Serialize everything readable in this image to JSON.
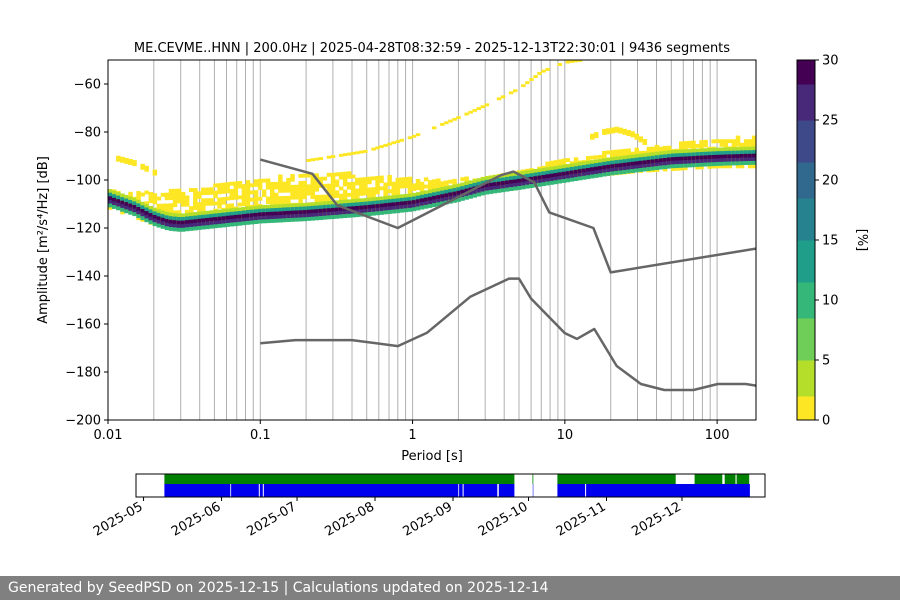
{
  "title": "ME.CEVME..HNN | 200.0Hz | 2025-04-28T08:32:59 - 2025-12-13T22:30:01 | 9436 segments",
  "footer": "Generated by SeedPSD on 2025-12-15 | Calculations updated on 2025-12-14",
  "colors": {
    "model": "#666666",
    "grid": "#b0b0b0",
    "coverage_data": "#0000ee",
    "coverage_status": "#008000",
    "viridis": [
      "#fde725",
      "#b5de2b",
      "#6ece58",
      "#35b779",
      "#1f9e89",
      "#26828e",
      "#31688e",
      "#3e4989",
      "#482878",
      "#440154"
    ]
  },
  "chart_data": [
    {
      "type": "heatmap",
      "name": "ppsd",
      "title": "ME.CEVME..HNN | 200.0Hz | 2025-04-28T08:32:59 - 2025-12-13T22:30:01 | 9436 segments",
      "xlabel": "Period [s]",
      "ylabel": "Amplitude [m²/s⁴/Hz] [dB]",
      "xscale": "log",
      "xlim": [
        0.01,
        180
      ],
      "ylim": [
        -200,
        -50
      ],
      "xticks": [
        {
          "value": 0.01,
          "label": "0.01"
        },
        {
          "value": 0.1,
          "label": "0.1"
        },
        {
          "value": 1,
          "label": "1"
        },
        {
          "value": 10,
          "label": "10"
        },
        {
          "value": 100,
          "label": "100"
        }
      ],
      "yticks": [
        {
          "value": -200,
          "label": "−200"
        },
        {
          "value": -180,
          "label": "−180"
        },
        {
          "value": -160,
          "label": "−160"
        },
        {
          "value": -140,
          "label": "−140"
        },
        {
          "value": -120,
          "label": "−120"
        },
        {
          "value": -100,
          "label": "−100"
        },
        {
          "value": -80,
          "label": "−80"
        },
        {
          "value": -60,
          "label": "−60"
        }
      ],
      "mode_curve": [
        [
          0.01,
          -108
        ],
        [
          0.015,
          -112
        ],
        [
          0.02,
          -116
        ],
        [
          0.025,
          -118
        ],
        [
          0.03,
          -118.5
        ],
        [
          0.05,
          -117
        ],
        [
          0.1,
          -115
        ],
        [
          0.2,
          -114
        ],
        [
          0.5,
          -112
        ],
        [
          1,
          -110
        ],
        [
          2,
          -106
        ],
        [
          3,
          -103
        ],
        [
          5,
          -101
        ],
        [
          10,
          -98
        ],
        [
          20,
          -95
        ],
        [
          50,
          -92
        ],
        [
          100,
          -91
        ],
        [
          180,
          -90.5
        ]
      ],
      "spread_band": [
        [
          0.01,
          -105,
          -112
        ],
        [
          0.02,
          -106,
          -119
        ],
        [
          0.05,
          -103,
          -118
        ],
        [
          0.1,
          -100,
          -116
        ],
        [
          0.3,
          -97,
          -115
        ],
        [
          1,
          -100,
          -112
        ],
        [
          3,
          -100,
          -106
        ],
        [
          10,
          -92,
          -100
        ],
        [
          30,
          -87,
          -97
        ],
        [
          100,
          -84,
          -95
        ],
        [
          180,
          -82,
          -95
        ]
      ],
      "spur_line": [
        [
          0.2,
          -92
        ],
        [
          0.5,
          -88
        ],
        [
          1,
          -82
        ],
        [
          2,
          -74
        ],
        [
          3,
          -69
        ],
        [
          5,
          -62
        ],
        [
          7,
          -55
        ],
        [
          10,
          -51
        ],
        [
          13,
          -50
        ]
      ],
      "high_left": [
        [
          0.01,
          -90
        ],
        [
          0.015,
          -93
        ],
        [
          0.022,
          -98
        ]
      ],
      "side_blob": [
        [
          15,
          -82
        ],
        [
          18,
          -80
        ],
        [
          22,
          -79
        ],
        [
          28,
          -81
        ],
        [
          35,
          -85
        ],
        [
          45,
          -88
        ]
      ],
      "colorbar": {
        "label": "[%]",
        "min": 0,
        "max": 30,
        "ticks": [
          0,
          5,
          10,
          15,
          20,
          25,
          30
        ]
      },
      "models": [
        {
          "name": "high_noise_model",
          "points": [
            [
              0.1,
              -91.5
            ],
            [
              0.22,
              -97.4
            ],
            [
              0.32,
              -110.5
            ],
            [
              0.8,
              -120
            ],
            [
              3.8,
              -98
            ],
            [
              4.6,
              -96.5
            ],
            [
              6.3,
              -101
            ],
            [
              7.9,
              -113.5
            ],
            [
              15.4,
              -120
            ],
            [
              20,
              -138.5
            ],
            [
              180,
              -128.6
            ]
          ]
        },
        {
          "name": "low_noise_model",
          "points": [
            [
              0.1,
              -168
            ],
            [
              0.17,
              -166.7
            ],
            [
              0.4,
              -166.7
            ],
            [
              0.8,
              -169.2
            ],
            [
              1.24,
              -163.7
            ],
            [
              2.4,
              -148.6
            ],
            [
              4.3,
              -141.1
            ],
            [
              5,
              -141.1
            ],
            [
              6,
              -149.4
            ],
            [
              10,
              -163.8
            ],
            [
              12,
              -166.2
            ],
            [
              15.6,
              -162.1
            ],
            [
              21.9,
              -177.5
            ],
            [
              31.6,
              -185
            ],
            [
              45,
              -187.5
            ],
            [
              70,
              -187.5
            ],
            [
              101,
              -185
            ],
            [
              154,
              -185
            ],
            [
              180,
              -185.7
            ]
          ]
        }
      ]
    },
    {
      "type": "timeline",
      "name": "data_coverage",
      "xlim_days": [
        0,
        250
      ],
      "months": [
        {
          "day": 3,
          "label": "2025-05"
        },
        {
          "day": 34,
          "label": "2025-06"
        },
        {
          "day": 64,
          "label": "2025-07"
        },
        {
          "day": 95,
          "label": "2025-08"
        },
        {
          "day": 126,
          "label": "2025-09"
        },
        {
          "day": 156,
          "label": "2025-10"
        },
        {
          "day": 187,
          "label": "2025-11"
        },
        {
          "day": 217,
          "label": "2025-12"
        }
      ],
      "data_segments": [
        [
          11.3,
          37.5
        ],
        [
          37.8,
          48.8
        ],
        [
          49.2,
          50.4
        ],
        [
          50.8,
          128.1
        ],
        [
          128.4,
          129.8
        ],
        [
          130.2,
          143.6
        ],
        [
          144.2,
          150.4
        ],
        [
          157.7,
          157.9
        ],
        [
          167.5,
          178.5
        ],
        [
          178.9,
          244
        ]
      ],
      "status_segments": [
        [
          11.3,
          150.4
        ],
        [
          157.6,
          157.9
        ],
        [
          167.5,
          214.5
        ],
        [
          222,
          233
        ],
        [
          234,
          238.3
        ],
        [
          238.7,
          243.7
        ]
      ]
    }
  ]
}
